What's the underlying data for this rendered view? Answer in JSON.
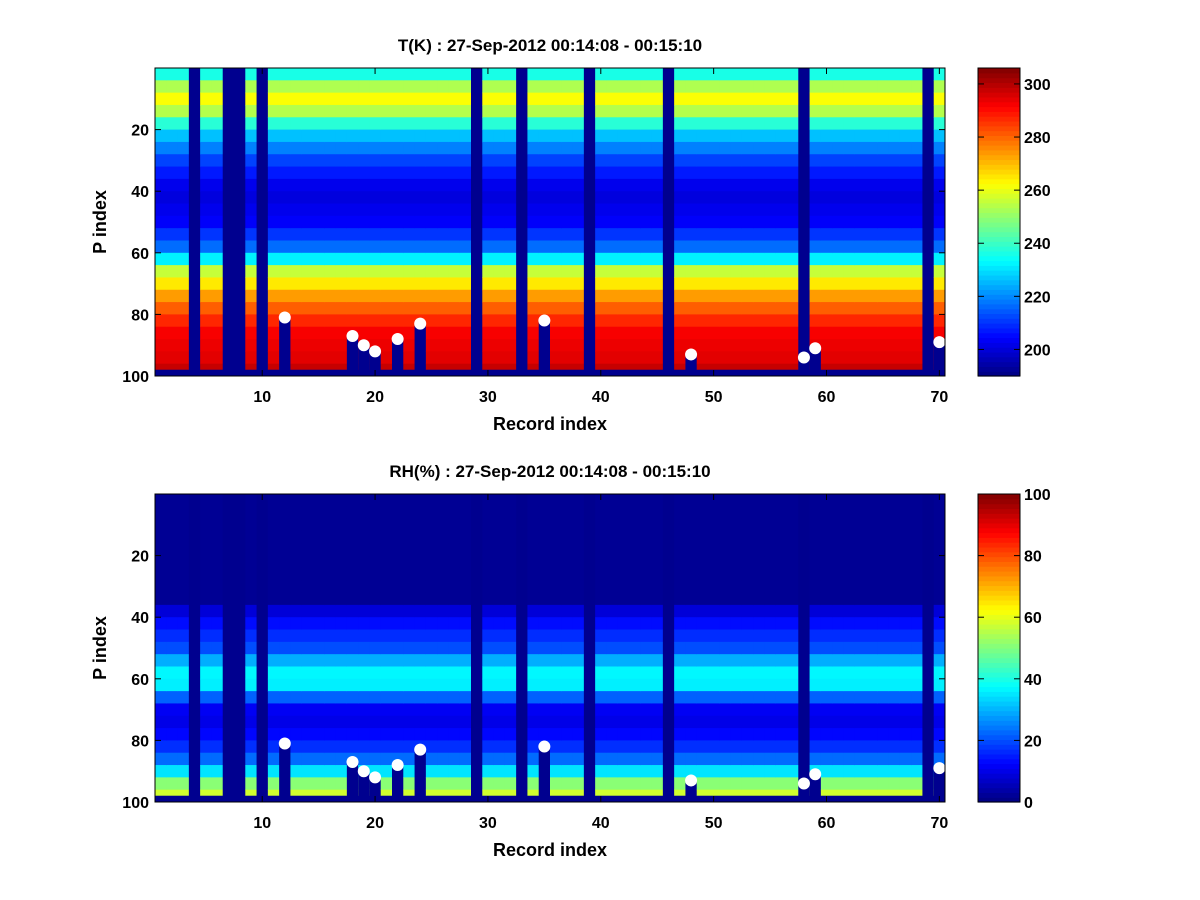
{
  "chart_data": [
    {
      "type": "heatmap",
      "title": "T(K) : 27-Sep-2012 00:14:08 - 00:15:10",
      "xlabel": "Record index",
      "ylabel": "P index",
      "xlim": [
        0.5,
        70.5
      ],
      "ylim": [
        100,
        0
      ],
      "x_ticks": [
        10,
        20,
        30,
        40,
        50,
        60,
        70
      ],
      "y_ticks": [
        20,
        40,
        60,
        80,
        100
      ],
      "colormap": "jet",
      "clim": [
        190,
        306
      ],
      "colorbar_ticks": [
        200,
        220,
        240,
        260,
        280,
        300
      ],
      "missing_records": [
        4,
        7,
        8,
        10,
        29,
        33,
        39,
        46,
        58,
        69
      ],
      "missing_fill_color": "#00008f",
      "profile_by_p_index": {
        "p": [
          1,
          8,
          12,
          20,
          30,
          40,
          50,
          60,
          66,
          75,
          85,
          95,
          98
        ],
        "value": [
          232,
          262,
          262,
          230,
          212,
          200,
          204,
          220,
          256,
          276,
          292,
          295,
          298
        ]
      },
      "marker_records": [
        12,
        18,
        19,
        20,
        22,
        24,
        35,
        48,
        58,
        59,
        70
      ],
      "marker_p_index": [
        81,
        87,
        90,
        92,
        88,
        83,
        82,
        93,
        94,
        91,
        89
      ],
      "marker_color": "#ffffff"
    },
    {
      "type": "heatmap",
      "title": "RH(%) : 27-Sep-2012 00:14:08 - 00:15:10",
      "xlabel": "Record index",
      "ylabel": "P index",
      "xlim": [
        0.5,
        70.5
      ],
      "ylim": [
        100,
        0
      ],
      "x_ticks": [
        10,
        20,
        30,
        40,
        50,
        60,
        70
      ],
      "y_ticks": [
        20,
        40,
        60,
        80,
        100
      ],
      "colormap": "jet",
      "clim": [
        0,
        100
      ],
      "colorbar_ticks": [
        0,
        20,
        40,
        60,
        80,
        100
      ],
      "missing_records": [
        4,
        7,
        8,
        10,
        29,
        33,
        39,
        46,
        58,
        69
      ],
      "missing_fill_color": "#00008f",
      "profile_by_p_index": {
        "p": [
          1,
          34,
          40,
          50,
          55,
          60,
          64,
          68,
          75,
          85,
          90,
          95,
          98
        ],
        "value": [
          2,
          2,
          12,
          20,
          32,
          40,
          32,
          12,
          10,
          20,
          35,
          55,
          58
        ]
      },
      "marker_records": [
        12,
        18,
        19,
        20,
        22,
        24,
        35,
        48,
        58,
        59,
        70
      ],
      "marker_p_index": [
        81,
        87,
        90,
        92,
        88,
        83,
        82,
        93,
        94,
        91,
        89
      ],
      "marker_color": "#ffffff"
    }
  ]
}
